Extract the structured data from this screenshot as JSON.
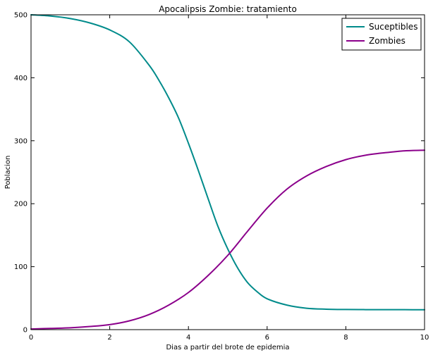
{
  "chart_data": {
    "type": "line",
    "title": "Apocalipsis Zombie: tratamiento",
    "xlabel": "Dias a partir del brote de epidemia",
    "ylabel": "Poblacion",
    "xlim": [
      0,
      10
    ],
    "ylim": [
      0,
      500
    ],
    "xticks": [
      0,
      2,
      4,
      6,
      8,
      10
    ],
    "yticks": [
      0,
      100,
      200,
      300,
      400,
      500
    ],
    "grid": false,
    "legend_position": "top-right",
    "series": [
      {
        "name": "Suceptibles",
        "color": "#008B8B",
        "x": [
          0,
          0.5,
          1,
          1.5,
          2,
          2.5,
          3,
          3.25,
          3.5,
          3.75,
          4,
          4.25,
          4.5,
          4.75,
          5,
          5.25,
          5.5,
          5.75,
          6,
          6.5,
          7,
          7.5,
          8,
          8.5,
          9,
          9.5,
          10
        ],
        "y": [
          500,
          498,
          494,
          487,
          476,
          457,
          420,
          396,
          368,
          336,
          296,
          253,
          208,
          164,
          128,
          98,
          75,
          60,
          49,
          39,
          34,
          32.5,
          32,
          31.8,
          31.7,
          31.7,
          31.6
        ]
      },
      {
        "name": "Zombies",
        "color": "#8B008B",
        "x": [
          0,
          0.5,
          1,
          1.5,
          2,
          2.5,
          3,
          3.5,
          4,
          4.5,
          5,
          5.5,
          6,
          6.5,
          7,
          7.5,
          8,
          8.5,
          9,
          9.5,
          10
        ],
        "y": [
          1,
          2,
          3,
          5,
          8,
          14,
          24,
          39,
          59,
          86,
          118,
          156,
          193,
          223,
          244,
          259,
          270,
          277,
          281,
          284,
          285
        ]
      }
    ]
  }
}
